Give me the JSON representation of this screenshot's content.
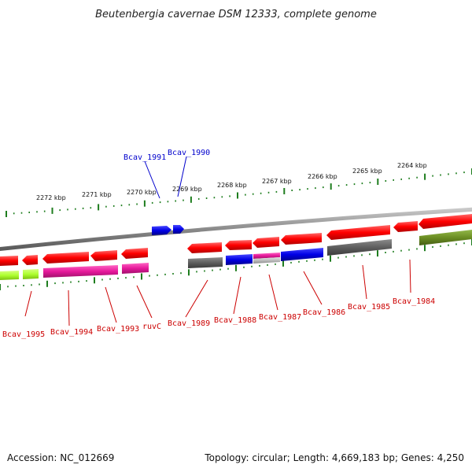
{
  "title": "Beutenbergia cavernae DSM 12333, complete genome",
  "accession": "Accession: NC_012669",
  "summary": "Topology: circular; Length: 4,669,183 bp; Genes: 4,250",
  "colors": {
    "background": "#ffffff",
    "backbone": "#8a8a8a",
    "tick": "#1e7d1e",
    "label_forward": "#0000cc",
    "label_reverse": "#cc0000",
    "gene_red": "#ff0000",
    "gene_blue": "#0000e6",
    "gene_gray": "#6a6a6a",
    "gene_magenta": "#e6199b",
    "gene_lime": "#adff2f",
    "gene_olive": "#6b8e23",
    "gene_lightgray": "#bdbdbd"
  },
  "kbp_labels": [
    "2272 kbp",
    "2271 kbp",
    "2270 kbp",
    "2269 kbp",
    "2268 kbp",
    "2267 kbp",
    "2266 kbp",
    "2265 kbp",
    "2264 kbp"
  ],
  "forward_gene_labels": [
    "Bcav_1991",
    "Bcav_1990"
  ],
  "reverse_gene_labels": [
    "Bcav_1995",
    "Bcav_1994",
    "Bcav_1993",
    "ruvC",
    "Bcav_1989",
    "Bcav_1988",
    "Bcav_1987",
    "Bcav_1986",
    "Bcav_1985",
    "Bcav_1984"
  ]
}
